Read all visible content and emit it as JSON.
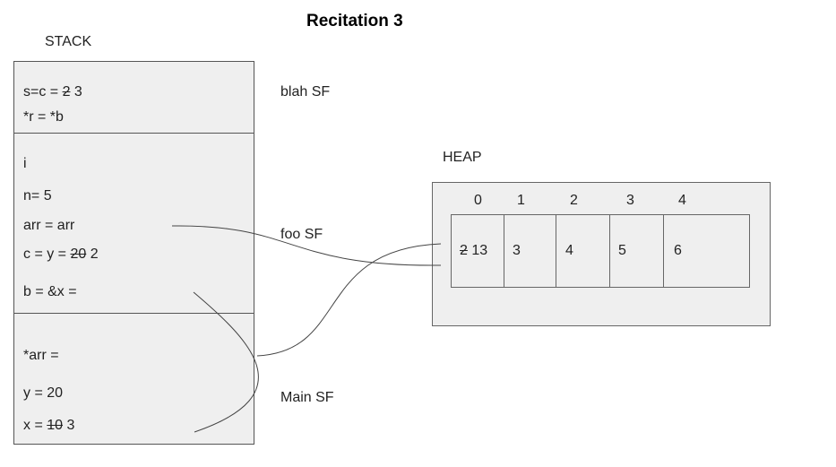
{
  "title": "Recitation 3",
  "stack": {
    "label": "STACK",
    "frames": [
      {
        "name": "blah SF",
        "lines": [
          {
            "pre": "s=c = ",
            "strike": "2",
            "post": " 3"
          },
          {
            "pre": "*r = *b",
            "strike": "",
            "post": ""
          }
        ]
      },
      {
        "name": "foo SF",
        "lines": [
          {
            "pre": "i",
            "strike": "",
            "post": ""
          },
          {
            "pre": "n= 5",
            "strike": "",
            "post": ""
          },
          {
            "pre": "arr = arr",
            "strike": "",
            "post": ""
          },
          {
            "pre": "c = y = ",
            "strike": "20",
            "post": " 2"
          },
          {
            "pre": "b = &x =",
            "strike": "",
            "post": ""
          }
        ]
      },
      {
        "name": "Main SF",
        "lines": [
          {
            "pre": "*arr =",
            "strike": "",
            "post": ""
          },
          {
            "pre": "y = 20",
            "strike": "",
            "post": ""
          },
          {
            "pre": "x = ",
            "strike": "10",
            "post": " 3"
          }
        ]
      }
    ]
  },
  "heap": {
    "label": "HEAP",
    "indices": [
      "0",
      "1",
      "2",
      "3",
      "4"
    ],
    "cells": [
      {
        "strike": "2",
        "post": " 13"
      },
      {
        "strike": "",
        "post": "3"
      },
      {
        "strike": "",
        "post": "4"
      },
      {
        "strike": "",
        "post": "5"
      },
      {
        "strike": "",
        "post": "6"
      }
    ]
  },
  "colors": {
    "box_fill": "#efefef",
    "box_border": "#555555",
    "arrow": "#444444"
  }
}
